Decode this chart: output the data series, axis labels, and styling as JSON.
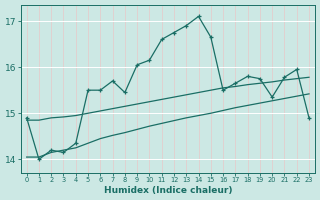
{
  "xlabel": "Humidex (Indice chaleur)",
  "background_color": "#cce8e4",
  "grid_color": "#ffffff",
  "line_color": "#1a6e65",
  "xlim": [
    -0.5,
    23.5
  ],
  "ylim": [
    13.7,
    17.35
  ],
  "yticks": [
    14,
    15,
    16,
    17
  ],
  "xticks": [
    0,
    1,
    2,
    3,
    4,
    5,
    6,
    7,
    8,
    9,
    10,
    11,
    12,
    13,
    14,
    15,
    16,
    17,
    18,
    19,
    20,
    21,
    22,
    23
  ],
  "line1_x": [
    0,
    1,
    2,
    3,
    4,
    5,
    6,
    7,
    8,
    9,
    10,
    11,
    12,
    13,
    14,
    15,
    16,
    17,
    18,
    19,
    20,
    21,
    22,
    23
  ],
  "line1_y": [
    14.9,
    14.0,
    14.2,
    14.15,
    14.35,
    15.5,
    15.5,
    15.7,
    15.45,
    16.05,
    16.15,
    16.6,
    16.75,
    16.9,
    17.1,
    16.65,
    15.5,
    15.65,
    15.8,
    15.75,
    15.35,
    15.78,
    15.95,
    14.9
  ],
  "line2_x": [
    0,
    1,
    2,
    3,
    4,
    5,
    6,
    7,
    8,
    9,
    10,
    11,
    12,
    13,
    14,
    15,
    16,
    17,
    18,
    19,
    20,
    21,
    22,
    23
  ],
  "line2_y": [
    14.05,
    14.05,
    14.15,
    14.2,
    14.25,
    14.35,
    14.45,
    14.52,
    14.58,
    14.65,
    14.72,
    14.78,
    14.84,
    14.9,
    14.95,
    15.0,
    15.06,
    15.12,
    15.17,
    15.22,
    15.27,
    15.32,
    15.37,
    15.42
  ],
  "line3_x": [
    0,
    1,
    2,
    3,
    4,
    5,
    6,
    7,
    8,
    9,
    10,
    11,
    12,
    13,
    14,
    15,
    16,
    17,
    18,
    19,
    20,
    21,
    22,
    23
  ],
  "line3_y": [
    14.85,
    14.85,
    14.9,
    14.92,
    14.95,
    15.0,
    15.05,
    15.1,
    15.15,
    15.2,
    15.25,
    15.3,
    15.35,
    15.4,
    15.45,
    15.5,
    15.55,
    15.58,
    15.62,
    15.65,
    15.68,
    15.72,
    15.75,
    15.78
  ],
  "marker": "+"
}
